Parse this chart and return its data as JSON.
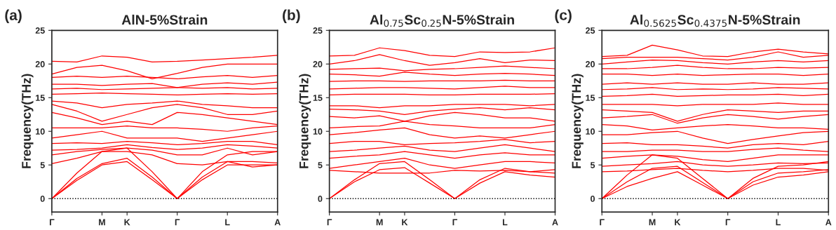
{
  "chart_data": [
    {
      "type": "line",
      "title": "AlN-5%Strain",
      "ylabel": "Frequency(THz)",
      "annotations": [
        "(a)"
      ],
      "categories": [
        "Γ",
        null,
        "M",
        "K",
        null,
        "Γ",
        null,
        "L",
        null,
        "A"
      ],
      "ylim": [
        -2,
        25
      ],
      "yticks": [
        0,
        5,
        10,
        15,
        20,
        25
      ],
      "grid": false,
      "legend": false,
      "line_style": "solid",
      "marker": "none",
      "ref_lines": [
        {
          "axis": "y",
          "value": 0,
          "color": "#000000",
          "line_style": "dotted"
        }
      ],
      "series": [
        {
          "color": "#ff0000",
          "values": [
            0,
            2.7,
            5,
            5.5,
            2.8,
            0,
            2.8,
            5,
            5,
            5
          ]
        },
        {
          "color": "#ff0000",
          "values": [
            0,
            3,
            5.2,
            6,
            3.2,
            0,
            3.2,
            5.5,
            5.5,
            5.3
          ]
        },
        {
          "color": "#ff0000",
          "values": [
            0,
            3.8,
            7,
            7.5,
            4,
            0,
            4,
            6.5,
            7,
            7
          ]
        },
        {
          "color": "#ff0000",
          "values": [
            5.2,
            6,
            7,
            7,
            6.5,
            5.2,
            5,
            5.5,
            4.7,
            5
          ]
        },
        {
          "color": "#ff0000",
          "values": [
            6.5,
            7,
            7.3,
            7.5,
            7.2,
            6.5,
            6.5,
            7.5,
            6.5,
            7
          ]
        },
        {
          "color": "#ff0000",
          "values": [
            7.2,
            7.3,
            7.5,
            8,
            7.6,
            7.3,
            7.5,
            8,
            7.8,
            7.5
          ]
        },
        {
          "color": "#ff0000",
          "values": [
            8.2,
            8.3,
            8.2,
            8.5,
            8.3,
            8,
            8.2,
            8.5,
            8.5,
            8
          ]
        },
        {
          "color": "#ff0000",
          "values": [
            9,
            9.5,
            10,
            9,
            9,
            9,
            8.5,
            9,
            9.5,
            10
          ]
        },
        {
          "color": "#ff0000",
          "values": [
            10.5,
            10.5,
            10.5,
            10.8,
            10.5,
            10.5,
            10.3,
            10,
            10.5,
            10.8
          ]
        },
        {
          "color": "#ff0000",
          "values": [
            12.8,
            12,
            11,
            11.5,
            11,
            12.8,
            12.5,
            12,
            11.5,
            11
          ]
        },
        {
          "color": "#ff0000",
          "values": [
            14,
            13,
            11.5,
            12.5,
            13.5,
            14,
            13.5,
            12.5,
            12.5,
            13
          ]
        },
        {
          "color": "#ff0000",
          "values": [
            14.5,
            14.2,
            13.5,
            14,
            14.2,
            14.5,
            14,
            13.8,
            13.5,
            13.5
          ]
        },
        {
          "color": "#ff0000",
          "values": [
            15.5,
            15.6,
            15.7,
            15.6,
            15.5,
            15.4,
            15.5,
            15.6,
            15.5,
            15.6
          ]
        },
        {
          "color": "#ff0000",
          "values": [
            16.3,
            16.4,
            16.2,
            16.3,
            16.4,
            16.5,
            16.4,
            16.5,
            16.3,
            16.4
          ]
        },
        {
          "color": "#ff0000",
          "values": [
            17,
            17,
            16.8,
            17,
            17.1,
            16.5,
            17,
            17.2,
            17,
            17.3
          ]
        },
        {
          "color": "#ff0000",
          "values": [
            18,
            18.2,
            18,
            18.2,
            18,
            17.8,
            18.1,
            18.3,
            18,
            18.3
          ]
        },
        {
          "color": "#ff0000",
          "values": [
            18.5,
            19.5,
            19.8,
            19,
            17.8,
            18.6,
            19.5,
            20,
            20,
            20
          ]
        },
        {
          "color": "#ff0000",
          "values": [
            20.4,
            20.3,
            21.2,
            21,
            20.3,
            20.4,
            20.6,
            20.8,
            21,
            21.3
          ]
        }
      ]
    },
    {
      "type": "line",
      "title": "Al$_{0.75}$Sc$_{0.25}$N-5%Strain",
      "ylabel": "Frequency(THz)",
      "annotations": [
        "(b)"
      ],
      "categories": [
        "Γ",
        null,
        "M",
        "K",
        null,
        "Γ",
        null,
        "L",
        null,
        "A"
      ],
      "ylim": [
        -2,
        25
      ],
      "yticks": [
        0,
        5,
        10,
        15,
        20,
        25
      ],
      "grid": false,
      "legend": false,
      "line_style": "solid",
      "marker": "none",
      "ref_lines": [
        {
          "axis": "y",
          "value": 0,
          "color": "#000000",
          "line_style": "dotted"
        }
      ],
      "series": [
        {
          "color": "#ff0000",
          "values": [
            0,
            2.5,
            4.3,
            4.6,
            2.3,
            0,
            2.3,
            4,
            3.5,
            3.2
          ]
        },
        {
          "color": "#ff0000",
          "values": [
            0,
            2.8,
            5.2,
            5.5,
            2.8,
            0,
            2.8,
            4.5,
            4,
            3.8
          ]
        },
        {
          "color": "#ff0000",
          "values": [
            4.2,
            4,
            3.8,
            3.8,
            3.8,
            4.2,
            4.1,
            4.2,
            4,
            4.3
          ]
        },
        {
          "color": "#ff0000",
          "values": [
            4.5,
            5,
            5.5,
            6,
            5,
            4.5,
            5,
            5.5,
            5.5,
            5.3
          ]
        },
        {
          "color": "#ff0000",
          "values": [
            6,
            6.3,
            6.5,
            7,
            6.5,
            6,
            6.5,
            6.8,
            6.5,
            6.5
          ]
        },
        {
          "color": "#ff0000",
          "values": [
            7,
            7.2,
            7.5,
            7.8,
            7.2,
            7,
            7.5,
            8,
            7.5,
            7
          ]
        },
        {
          "color": "#ff0000",
          "values": [
            8.2,
            8.5,
            8.5,
            8,
            8.2,
            8.3,
            8.5,
            8.8,
            8.3,
            8.5
          ]
        },
        {
          "color": "#ff0000",
          "values": [
            9.5,
            9.8,
            10.2,
            10.5,
            9.5,
            9,
            9.3,
            9,
            9.5,
            10
          ]
        },
        {
          "color": "#ff0000",
          "values": [
            10.5,
            10.7,
            10.8,
            11.5,
            11,
            10.8,
            10.5,
            10.5,
            10.5,
            11
          ]
        },
        {
          "color": "#ff0000",
          "values": [
            12.2,
            12,
            12.3,
            11.5,
            12.3,
            12.8,
            12.5,
            12,
            12,
            11.5
          ]
        },
        {
          "color": "#ff0000",
          "values": [
            13.3,
            13.2,
            13,
            12.5,
            13,
            13.3,
            13.5,
            13.2,
            13.5,
            13.2
          ]
        },
        {
          "color": "#ff0000",
          "values": [
            13.8,
            13.8,
            13.5,
            13.8,
            13.8,
            14,
            14,
            14,
            13.8,
            14
          ]
        },
        {
          "color": "#ff0000",
          "values": [
            15.4,
            15.5,
            15.5,
            15.5,
            15.4,
            15.4,
            15.5,
            15.5,
            15.5,
            15.6
          ]
        },
        {
          "color": "#ff0000",
          "values": [
            16.3,
            16.4,
            16.5,
            16.5,
            16.4,
            16.3,
            16.5,
            16.7,
            16.5,
            16.5
          ]
        },
        {
          "color": "#ff0000",
          "values": [
            17.4,
            17.5,
            17.5,
            17.4,
            17.5,
            17.5,
            17.5,
            17.6,
            17.5,
            17.5
          ]
        },
        {
          "color": "#ff0000",
          "values": [
            18.5,
            18.4,
            18.2,
            18.8,
            18.5,
            18.3,
            18.5,
            18.6,
            18.5,
            18.3
          ]
        },
        {
          "color": "#ff0000",
          "values": [
            19.2,
            19.3,
            19.4,
            19,
            19.2,
            19.3,
            19.5,
            19.7,
            19.5,
            19.3
          ]
        },
        {
          "color": "#ff0000",
          "values": [
            20,
            20.5,
            21.4,
            20.5,
            19.8,
            20.2,
            20.8,
            20.2,
            20.6,
            20.5
          ]
        },
        {
          "color": "#ff0000",
          "values": [
            21.2,
            21.3,
            22.4,
            22,
            21.3,
            21.1,
            21.8,
            21.7,
            21.8,
            22.4
          ]
        }
      ]
    },
    {
      "type": "line",
      "title": "Al$_{0.5625}$Sc$_{0.4375}$N-5%Strain",
      "ylabel": "Frequency(THz)",
      "annotations": [
        "(c)"
      ],
      "categories": [
        "Γ",
        null,
        "M",
        "K",
        null,
        "Γ",
        null,
        "L",
        null,
        "A"
      ],
      "ylim": [
        -2,
        25
      ],
      "yticks": [
        0,
        5,
        10,
        15,
        20,
        25
      ],
      "grid": false,
      "legend": false,
      "line_style": "solid",
      "marker": "none",
      "ref_lines": [
        {
          "axis": "y",
          "value": 0,
          "color": "#000000",
          "line_style": "dotted"
        }
      ],
      "series": [
        {
          "color": "#ff0000",
          "values": [
            0,
            1.8,
            3,
            4,
            2,
            0,
            2,
            3.2,
            3.5,
            4
          ]
        },
        {
          "color": "#ff0000",
          "values": [
            0,
            2.5,
            4.5,
            4.8,
            2.4,
            0,
            2.5,
            3.8,
            4,
            4.3
          ]
        },
        {
          "color": "#ff0000",
          "values": [
            0,
            3.5,
            6.5,
            6,
            3,
            0,
            3,
            4.8,
            5,
            5.5
          ]
        },
        {
          "color": "#ff0000",
          "values": [
            4,
            4.1,
            4.3,
            4.5,
            4.2,
            4,
            4.2,
            4.5,
            4.5,
            4.2
          ]
        },
        {
          "color": "#ff0000",
          "values": [
            4.8,
            5,
            5.2,
            5.5,
            5,
            4.8,
            5,
            5.3,
            5.2,
            5.3
          ]
        },
        {
          "color": "#ff0000",
          "values": [
            6,
            6.3,
            6.5,
            6.3,
            5.8,
            5.5,
            6,
            6.5,
            6.5,
            6.5
          ]
        },
        {
          "color": "#ff0000",
          "values": [
            7,
            7,
            7.2,
            7.2,
            7,
            7,
            7.3,
            7.5,
            7.2,
            7
          ]
        },
        {
          "color": "#ff0000",
          "values": [
            8.2,
            8.3,
            8,
            8,
            7.8,
            7.5,
            8,
            8.2,
            8,
            8.5
          ]
        },
        {
          "color": "#ff0000",
          "values": [
            9.5,
            9.5,
            9.8,
            10,
            9,
            8.2,
            8.8,
            9.3,
            9.8,
            10
          ]
        },
        {
          "color": "#ff0000",
          "values": [
            11,
            10.8,
            10.2,
            10.5,
            10.8,
            11,
            10.8,
            10.5,
            10.5,
            10.3
          ]
        },
        {
          "color": "#ff0000",
          "values": [
            12,
            12.2,
            12.5,
            11.2,
            12,
            12.5,
            12.2,
            11.8,
            12.2,
            12.5
          ]
        },
        {
          "color": "#ff0000",
          "values": [
            13.2,
            13,
            12.8,
            11.5,
            12.5,
            13.2,
            13,
            12.8,
            13,
            13
          ]
        },
        {
          "color": "#ff0000",
          "values": [
            14,
            14,
            14,
            13.8,
            14,
            14,
            14,
            14.2,
            14,
            14
          ]
        },
        {
          "color": "#ff0000",
          "values": [
            15.2,
            15.3,
            15.5,
            15.2,
            15.3,
            15.4,
            15.4,
            15.5,
            15.3,
            15.5
          ]
        },
        {
          "color": "#ff0000",
          "values": [
            16.2,
            16.3,
            16.5,
            16.2,
            16.3,
            16.2,
            16.3,
            16.5,
            16.4,
            16.3
          ]
        },
        {
          "color": "#ff0000",
          "values": [
            17,
            17.2,
            17,
            17.2,
            17,
            17,
            17.2,
            17,
            17,
            17.2
          ]
        },
        {
          "color": "#ff0000",
          "values": [
            18.5,
            18.5,
            18.3,
            18.5,
            18.3,
            18.4,
            18.5,
            18.5,
            18.3,
            18.5
          ]
        },
        {
          "color": "#ff0000",
          "values": [
            19.3,
            19.3,
            19.5,
            19.8,
            19.5,
            19.3,
            19.3,
            19.5,
            19.4,
            19.5
          ]
        },
        {
          "color": "#ff0000",
          "values": [
            20,
            20.3,
            20.6,
            20.5,
            20.2,
            20,
            20.3,
            20.5,
            20.3,
            20.5
          ]
        },
        {
          "color": "#ff0000",
          "values": [
            20.8,
            21,
            21,
            21,
            20.8,
            20.6,
            21,
            21.8,
            21,
            21.3
          ]
        },
        {
          "color": "#ff0000",
          "values": [
            21.1,
            21.3,
            22.8,
            22.1,
            21.2,
            21.1,
            21.8,
            22.2,
            21.8,
            21.5
          ]
        }
      ]
    }
  ]
}
